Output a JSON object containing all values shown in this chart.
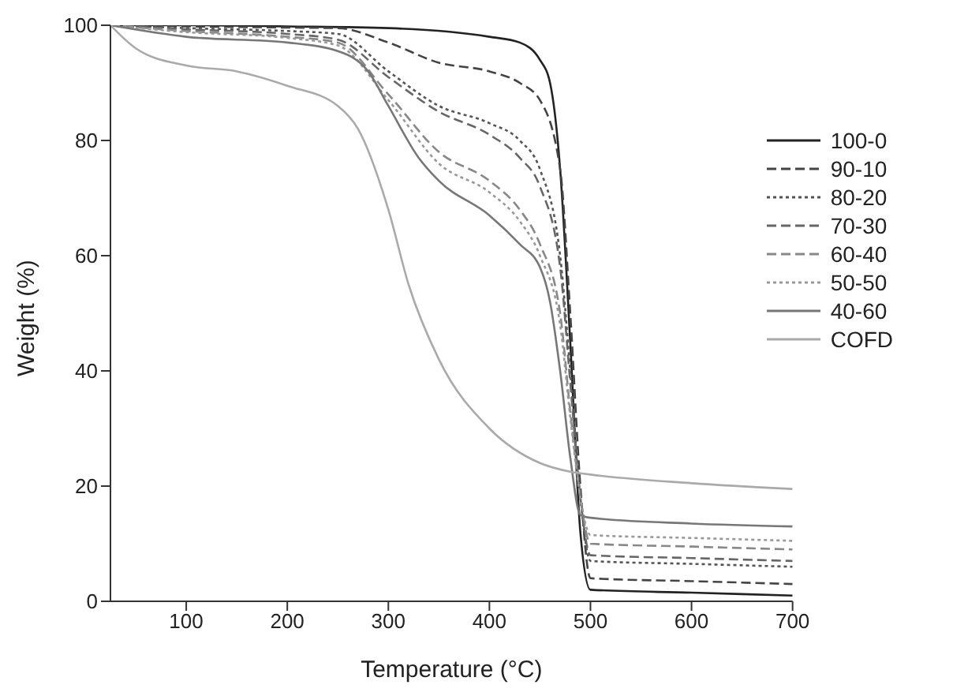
{
  "chart_data": {
    "type": "line",
    "xlabel": "Temperature (°C)",
    "ylabel": "Weight (%)",
    "xlim": [
      25,
      700
    ],
    "ylim": [
      0,
      100
    ],
    "xticks": [
      100,
      200,
      300,
      400,
      500,
      600,
      700
    ],
    "yticks": [
      0,
      20,
      40,
      60,
      80,
      100
    ],
    "grid": false,
    "legend": "right",
    "marker": "none",
    "series": [
      {
        "name": "100-0",
        "color": "#222222",
        "line_style": "solid",
        "x": [
          25,
          100,
          200,
          300,
          400,
          430,
          450,
          460,
          470,
          480,
          490,
          500,
          600,
          700
        ],
        "values": [
          100,
          100,
          99.8,
          99.5,
          98,
          97,
          94,
          90,
          75,
          45,
          12,
          2,
          1.5,
          1
        ]
      },
      {
        "name": "90-10",
        "color": "#444444",
        "line_style": "dashed",
        "x": [
          25,
          100,
          200,
          250,
          300,
          350,
          400,
          430,
          450,
          470,
          480,
          490,
          500,
          600,
          700
        ],
        "values": [
          100,
          99.8,
          99.6,
          99.5,
          97,
          93.5,
          92,
          90,
          87,
          75,
          50,
          20,
          4,
          3.5,
          3
        ]
      },
      {
        "name": "80-20",
        "color": "#555555",
        "line_style": "dotted",
        "x": [
          25,
          100,
          200,
          250,
          300,
          350,
          400,
          430,
          450,
          470,
          480,
          490,
          500,
          600,
          700
        ],
        "values": [
          100,
          99.5,
          99,
          98.5,
          92,
          86,
          83,
          80,
          75,
          60,
          40,
          18,
          7,
          6.5,
          6
        ]
      },
      {
        "name": "70-30",
        "color": "#666666",
        "line_style": "dashed",
        "x": [
          25,
          100,
          200,
          250,
          300,
          350,
          400,
          430,
          450,
          470,
          480,
          490,
          500,
          600,
          700
        ],
        "values": [
          100,
          99.3,
          98.5,
          97.5,
          91,
          85,
          81,
          77,
          72,
          58,
          38,
          18,
          8,
          7.5,
          7
        ]
      },
      {
        "name": "60-40",
        "color": "#888888",
        "line_style": "dashed",
        "x": [
          25,
          100,
          200,
          250,
          300,
          350,
          400,
          430,
          450,
          470,
          480,
          490,
          500,
          600,
          700
        ],
        "values": [
          100,
          99,
          98,
          97,
          88,
          78,
          73,
          68,
          62,
          50,
          33,
          18,
          10,
          9.5,
          9
        ]
      },
      {
        "name": "50-50",
        "color": "#999999",
        "line_style": "dotted",
        "x": [
          25,
          100,
          200,
          250,
          300,
          350,
          400,
          430,
          450,
          470,
          480,
          490,
          500,
          600,
          700
        ],
        "values": [
          100,
          98.8,
          97.8,
          96.5,
          87,
          76,
          71,
          66,
          60,
          48,
          32,
          18,
          11.5,
          11,
          10.5
        ]
      },
      {
        "name": "40-60",
        "color": "#777777",
        "line_style": "solid",
        "x": [
          25,
          100,
          200,
          250,
          280,
          300,
          330,
          350,
          400,
          430,
          450,
          460,
          470,
          480,
          490,
          500,
          600,
          700
        ],
        "values": [
          100,
          98,
          97,
          95.5,
          92,
          86,
          77,
          73,
          67,
          62,
          58,
          52,
          40,
          25,
          15,
          14.5,
          13.5,
          13
        ]
      },
      {
        "name": "COFD",
        "color": "#aaaaaa",
        "line_style": "solid",
        "x": [
          25,
          50,
          100,
          150,
          200,
          250,
          270,
          300,
          320,
          350,
          400,
          450,
          480,
          500,
          600,
          700
        ],
        "values": [
          100,
          96,
          93,
          92,
          89.5,
          86,
          82,
          68,
          55,
          42,
          30,
          24,
          22.5,
          22,
          20.5,
          19.5
        ]
      }
    ]
  }
}
